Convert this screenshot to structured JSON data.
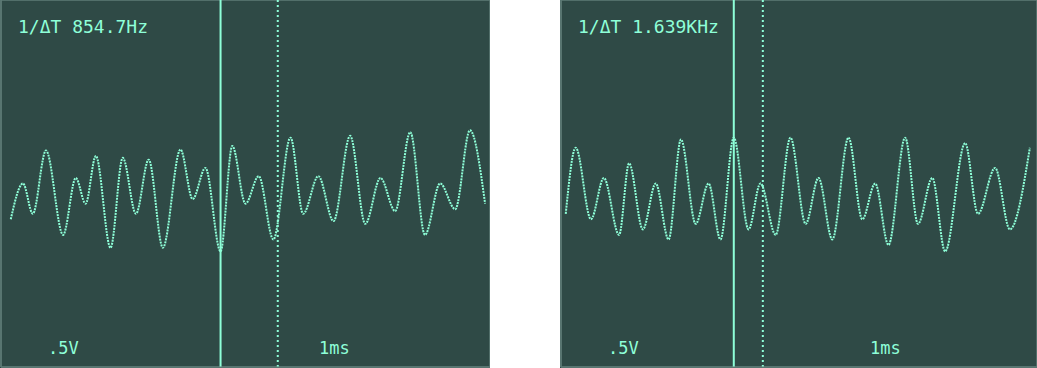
{
  "chart_data": [
    {
      "type": "line",
      "title": "1/ΔT 854.7Hz",
      "ylabel": ".5V",
      "xlabel": "1ms",
      "color": "#8effd8",
      "grid": true,
      "tick_labels": false,
      "xlim": [
        0,
        10
      ],
      "xticks": [
        0,
        1,
        2,
        3,
        4,
        5,
        6,
        7,
        8,
        9,
        10
      ],
      "ylim": [
        -2,
        2
      ],
      "yticks": [
        -2,
        -1.5,
        -1,
        -0.5,
        0,
        0.5,
        1,
        1.5,
        2
      ],
      "cursors": [
        4.49,
        5.66
      ],
      "x": [
        0.2,
        0.45,
        0.65,
        0.92,
        1.27,
        1.53,
        1.73,
        1.94,
        2.24,
        2.49,
        2.76,
        3.02,
        3.31,
        3.67,
        3.92,
        4.18,
        4.49,
        4.73,
        5.0,
        5.27,
        5.57,
        5.92,
        6.18,
        6.49,
        6.8,
        7.14,
        7.45,
        7.76,
        8.06,
        8.37,
        8.67,
        8.98,
        9.29,
        9.59,
        9.9
      ],
      "values": [
        -0.39,
        0,
        -0.33,
        0.36,
        -0.56,
        0.06,
        -0.22,
        0.3,
        -0.7,
        0.28,
        -0.33,
        0.26,
        -0.7,
        0.37,
        -0.17,
        0.17,
        -0.74,
        0.41,
        -0.22,
        0.08,
        -0.61,
        0.5,
        -0.33,
        0.08,
        -0.41,
        0.52,
        -0.44,
        0.06,
        -0.3,
        0.56,
        -0.56,
        0,
        -0.28,
        0.58,
        -0.22
      ]
    },
    {
      "type": "line",
      "title": "1/ΔT 1.639KHz",
      "ylabel": ".5V",
      "xlabel": "1ms",
      "color": "#8effd8",
      "grid": true,
      "tick_labels": false,
      "xlim": [
        0,
        10
      ],
      "xticks": [
        0,
        1,
        2,
        3,
        4,
        5,
        6,
        7,
        8,
        9,
        10
      ],
      "ylim": [
        -2,
        2
      ],
      "yticks": [
        -2,
        -1.5,
        -1,
        -0.5,
        0,
        0.5,
        1,
        1.5,
        2
      ],
      "cursors": [
        3.63,
        4.24
      ],
      "x": [
        0.1,
        0.31,
        0.63,
        0.9,
        1.22,
        1.43,
        1.72,
        1.99,
        2.26,
        2.52,
        2.83,
        3.1,
        3.35,
        3.63,
        3.94,
        4.19,
        4.51,
        4.82,
        5.14,
        5.41,
        5.7,
        6.04,
        6.33,
        6.6,
        6.88,
        7.23,
        7.5,
        7.8,
        8.07,
        8.49,
        8.76,
        9.12,
        9.43,
        9.85
      ],
      "values": [
        -0.33,
        0.39,
        -0.39,
        0.06,
        -0.56,
        0.22,
        -0.5,
        0,
        -0.61,
        0.48,
        -0.44,
        0,
        -0.61,
        0.5,
        -0.5,
        0,
        -0.56,
        0.5,
        -0.44,
        0.06,
        -0.61,
        0.5,
        -0.39,
        0,
        -0.67,
        0.5,
        -0.44,
        0.06,
        -0.74,
        0.44,
        -0.33,
        0.17,
        -0.5,
        0.39
      ]
    }
  ]
}
